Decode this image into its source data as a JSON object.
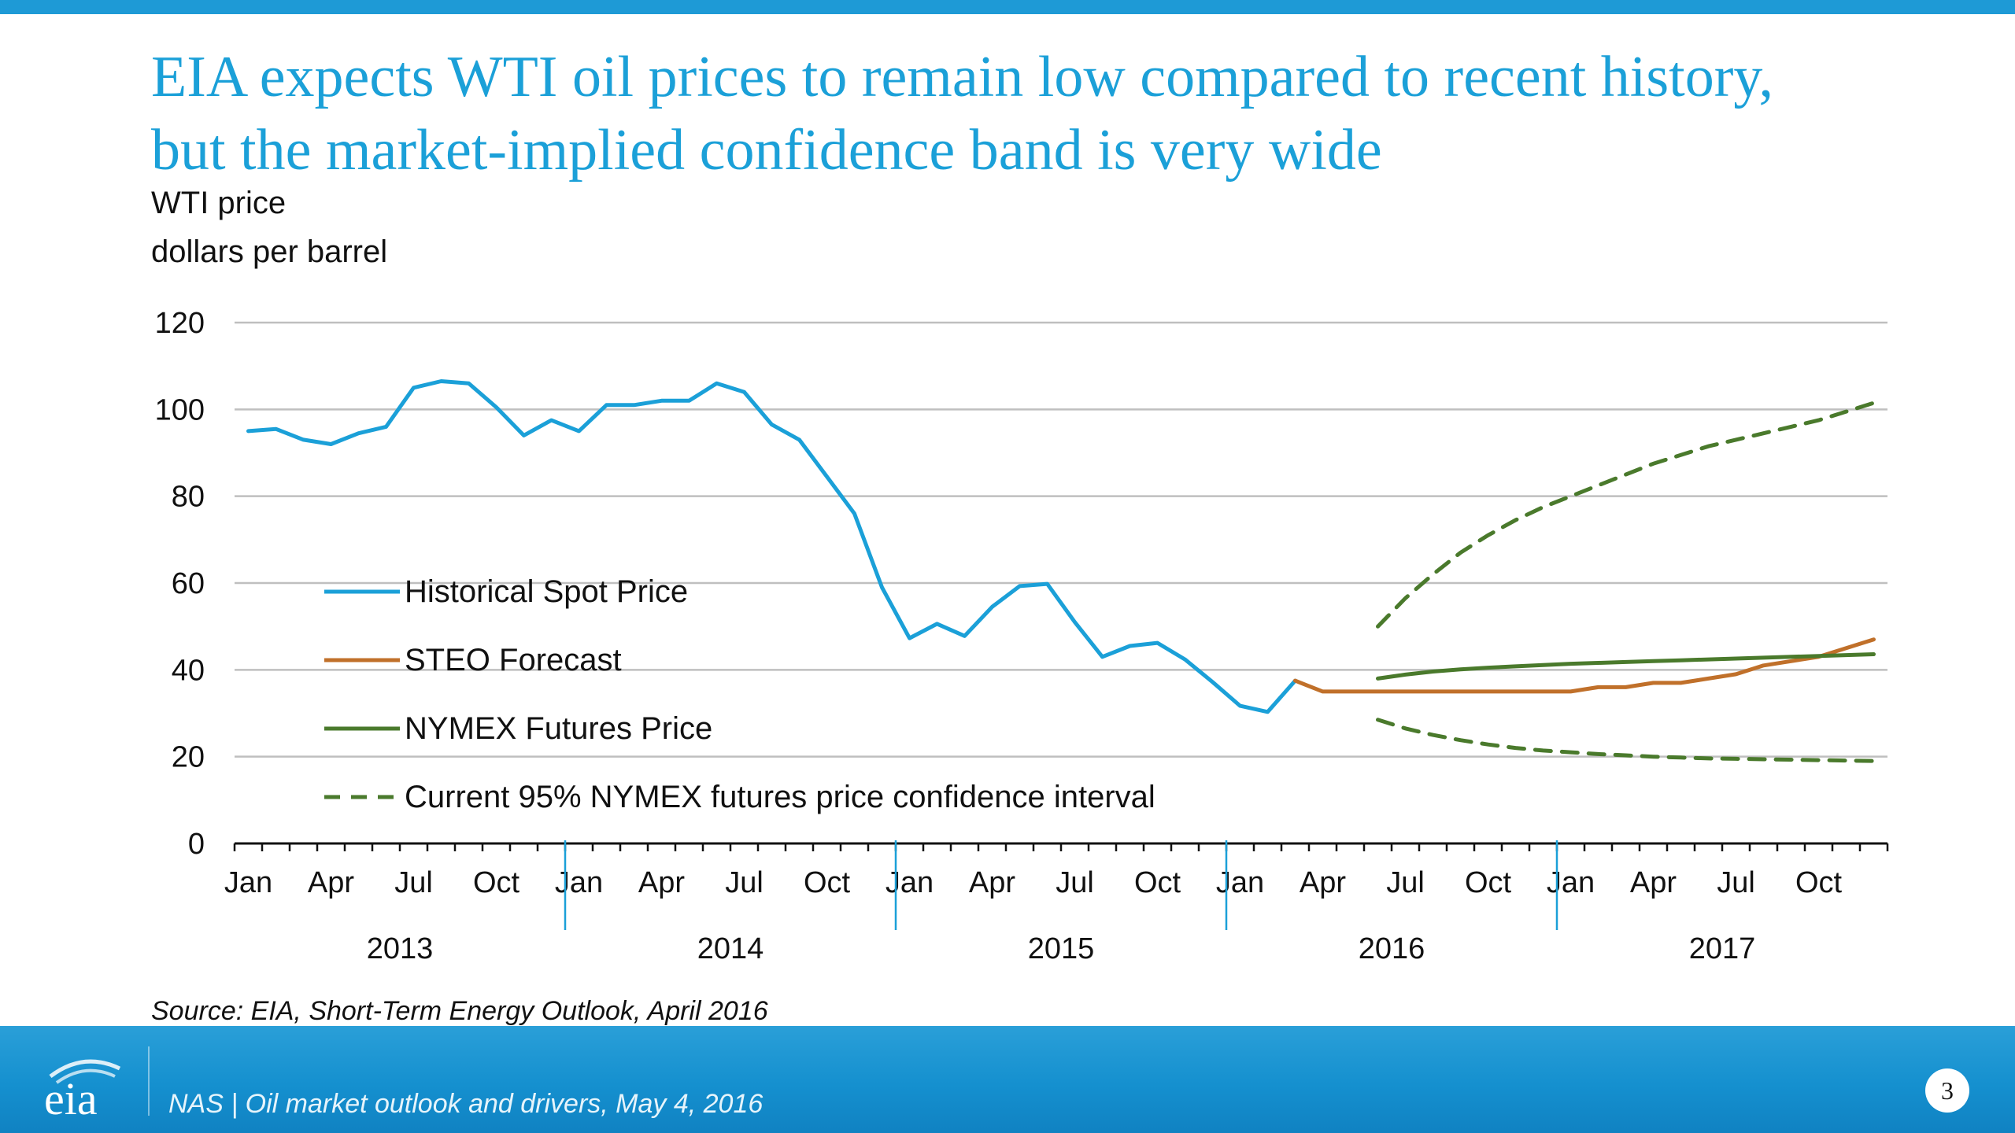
{
  "slide": {
    "title_line1": "EIA expects WTI oil prices to remain low compared to recent history,",
    "title_line2": "but the market-implied confidence band is very wide",
    "unit_line1": "WTI price",
    "unit_line2": "dollars per barrel",
    "source": "Source: EIA, Short-Term Energy Outlook, April 2016",
    "footer_text": "NAS | Oil market outlook and drivers, May 4, 2016",
    "page_number": "3",
    "logo_text": "eia"
  },
  "colors": {
    "accent": "#1ba0d8",
    "historical": "#1ba0d8",
    "steo": "#c0702a",
    "nymex": "#4a7a2c",
    "confidence": "#4a7a2c",
    "grid": "#bfbfbf"
  },
  "chart_data": {
    "type": "line",
    "title": "",
    "ylabel": "WTI price dollars per barrel",
    "ylim": [
      0,
      120
    ],
    "yticks": [
      0,
      20,
      40,
      60,
      80,
      100,
      120
    ],
    "x_range_months": [
      "2013-01",
      "2017-12"
    ],
    "month_tick_labels": [
      "Jan",
      "Apr",
      "Jul",
      "Oct",
      "Jan",
      "Apr",
      "Jul",
      "Oct",
      "Jan",
      "Apr",
      "Jul",
      "Oct",
      "Jan",
      "Apr",
      "Jul",
      "Oct",
      "Jan",
      "Apr",
      "Jul",
      "Oct"
    ],
    "year_labels": [
      "2013",
      "2014",
      "2015",
      "2016",
      "2017"
    ],
    "legend_position": "lower-left inside",
    "grid": true,
    "series": [
      {
        "name": "Historical Spot Price",
        "style": "solid",
        "color": "#1ba0d8",
        "x": [
          "2013-01",
          "2013-02",
          "2013-03",
          "2013-04",
          "2013-05",
          "2013-06",
          "2013-07",
          "2013-08",
          "2013-09",
          "2013-10",
          "2013-11",
          "2013-12",
          "2014-01",
          "2014-02",
          "2014-03",
          "2014-04",
          "2014-05",
          "2014-06",
          "2014-07",
          "2014-08",
          "2014-09",
          "2014-10",
          "2014-11",
          "2014-12",
          "2015-01",
          "2015-02",
          "2015-03",
          "2015-04",
          "2015-05",
          "2015-06",
          "2015-07",
          "2015-08",
          "2015-09",
          "2015-10",
          "2015-11",
          "2015-12",
          "2016-01",
          "2016-02",
          "2016-03"
        ],
        "y": [
          95,
          95.5,
          93,
          92,
          94.5,
          96,
          105,
          106.5,
          106,
          100.5,
          94,
          97.5,
          95,
          101,
          101,
          102,
          102,
          106,
          104,
          96.5,
          93,
          84.5,
          76,
          59,
          47.3,
          50.6,
          47.8,
          54.5,
          59.3,
          59.8,
          51,
          43,
          45.5,
          46.2,
          42.4,
          37.2,
          31.7,
          30.3,
          37.5
        ]
      },
      {
        "name": "STEO Forecast",
        "style": "solid",
        "color": "#c0702a",
        "x": [
          "2016-03",
          "2016-04",
          "2016-05",
          "2016-06",
          "2016-07",
          "2016-08",
          "2016-09",
          "2016-10",
          "2016-11",
          "2016-12",
          "2017-01",
          "2017-02",
          "2017-03",
          "2017-04",
          "2017-05",
          "2017-06",
          "2017-07",
          "2017-08",
          "2017-09",
          "2017-10",
          "2017-11",
          "2017-12"
        ],
        "y": [
          37.5,
          35,
          35,
          35,
          35,
          35,
          35,
          35,
          35,
          35,
          35,
          36,
          36,
          37,
          37,
          38,
          39,
          41,
          42,
          43,
          45,
          47
        ]
      },
      {
        "name": "NYMEX Futures Price",
        "style": "solid",
        "color": "#4a7a2c",
        "x": [
          "2016-06",
          "2016-07",
          "2016-08",
          "2016-09",
          "2016-10",
          "2016-11",
          "2016-12",
          "2017-01",
          "2017-02",
          "2017-03",
          "2017-04",
          "2017-05",
          "2017-06",
          "2017-07",
          "2017-08",
          "2017-09",
          "2017-10",
          "2017-11",
          "2017-12"
        ],
        "y": [
          38,
          38.9,
          39.6,
          40.1,
          40.5,
          40.8,
          41.1,
          41.4,
          41.6,
          41.8,
          42,
          42.2,
          42.4,
          42.6,
          42.8,
          43,
          43.2,
          43.4,
          43.6
        ]
      },
      {
        "name": "Current 95% NYMEX futures price confidence interval",
        "style": "dashed",
        "color": "#4a7a2c",
        "x": [
          "2016-06",
          "2016-07",
          "2016-08",
          "2016-09",
          "2016-10",
          "2016-11",
          "2016-12",
          "2017-01",
          "2017-02",
          "2017-03",
          "2017-04",
          "2017-05",
          "2017-06",
          "2017-07",
          "2017-08",
          "2017-09",
          "2017-10",
          "2017-11",
          "2017-12"
        ],
        "y_upper": [
          50,
          56.5,
          62,
          67,
          71,
          74.5,
          77.5,
          80,
          82.5,
          85,
          87.5,
          89.5,
          91.5,
          93,
          94.5,
          96,
          97.5,
          99.5,
          101.5
        ],
        "y_lower": [
          28.5,
          26.5,
          25,
          23.8,
          22.8,
          22,
          21.4,
          21,
          20.6,
          20.3,
          20,
          19.8,
          19.6,
          19.5,
          19.4,
          19.3,
          19.2,
          19.1,
          19
        ]
      }
    ]
  }
}
